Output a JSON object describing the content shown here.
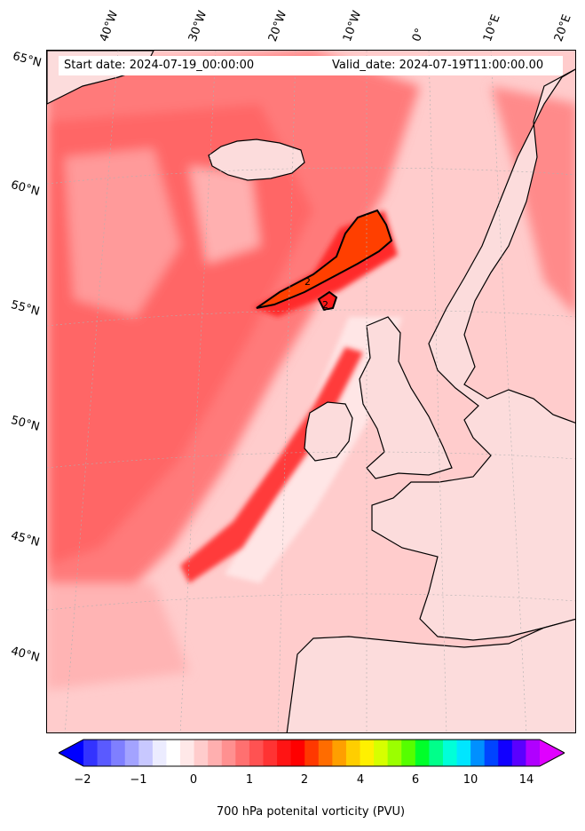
{
  "map": {
    "start_date": "Start date: 2024-07-19_00:00:00",
    "valid_date": "Valid_date: 2024-07-19T11:00:00.00",
    "lon_labels": [
      "40°W",
      "30°W",
      "20°W",
      "10°W",
      "0°",
      "10°E",
      "20°E"
    ],
    "lat_labels": [
      "65°N",
      "60°N",
      "55°N",
      "50°N",
      "45°N",
      "40°N"
    ],
    "contour_labels": [
      "2",
      "2"
    ],
    "land_color": "#fcd8d8",
    "coast_color": "#000000"
  },
  "colorbar": {
    "title": "700 hPa potenital vorticity (PVU)",
    "tick_labels": [
      "−2",
      "−1",
      "0",
      "1",
      "2",
      "4",
      "6",
      "10",
      "14"
    ],
    "colors": [
      "#0000ff",
      "#3333ff",
      "#5a5aff",
      "#7f7fff",
      "#a3a3ff",
      "#c8c8ff",
      "#ececff",
      "#ffffff",
      "#ffe8e8",
      "#ffcccc",
      "#ffafaf",
      "#ff9090",
      "#ff7070",
      "#ff5252",
      "#ff3333",
      "#ff1414",
      "#ff0000",
      "#ff3800",
      "#ff6c00",
      "#ff9f00",
      "#ffce00",
      "#fff000",
      "#d6ff00",
      "#9bff00",
      "#55ff00",
      "#00ff2a",
      "#00ff8a",
      "#00ffd8",
      "#00e6ff",
      "#0090ff",
      "#0044ff",
      "#1100ff",
      "#5a00ff",
      "#b000ff",
      "#e000ff"
    ]
  }
}
